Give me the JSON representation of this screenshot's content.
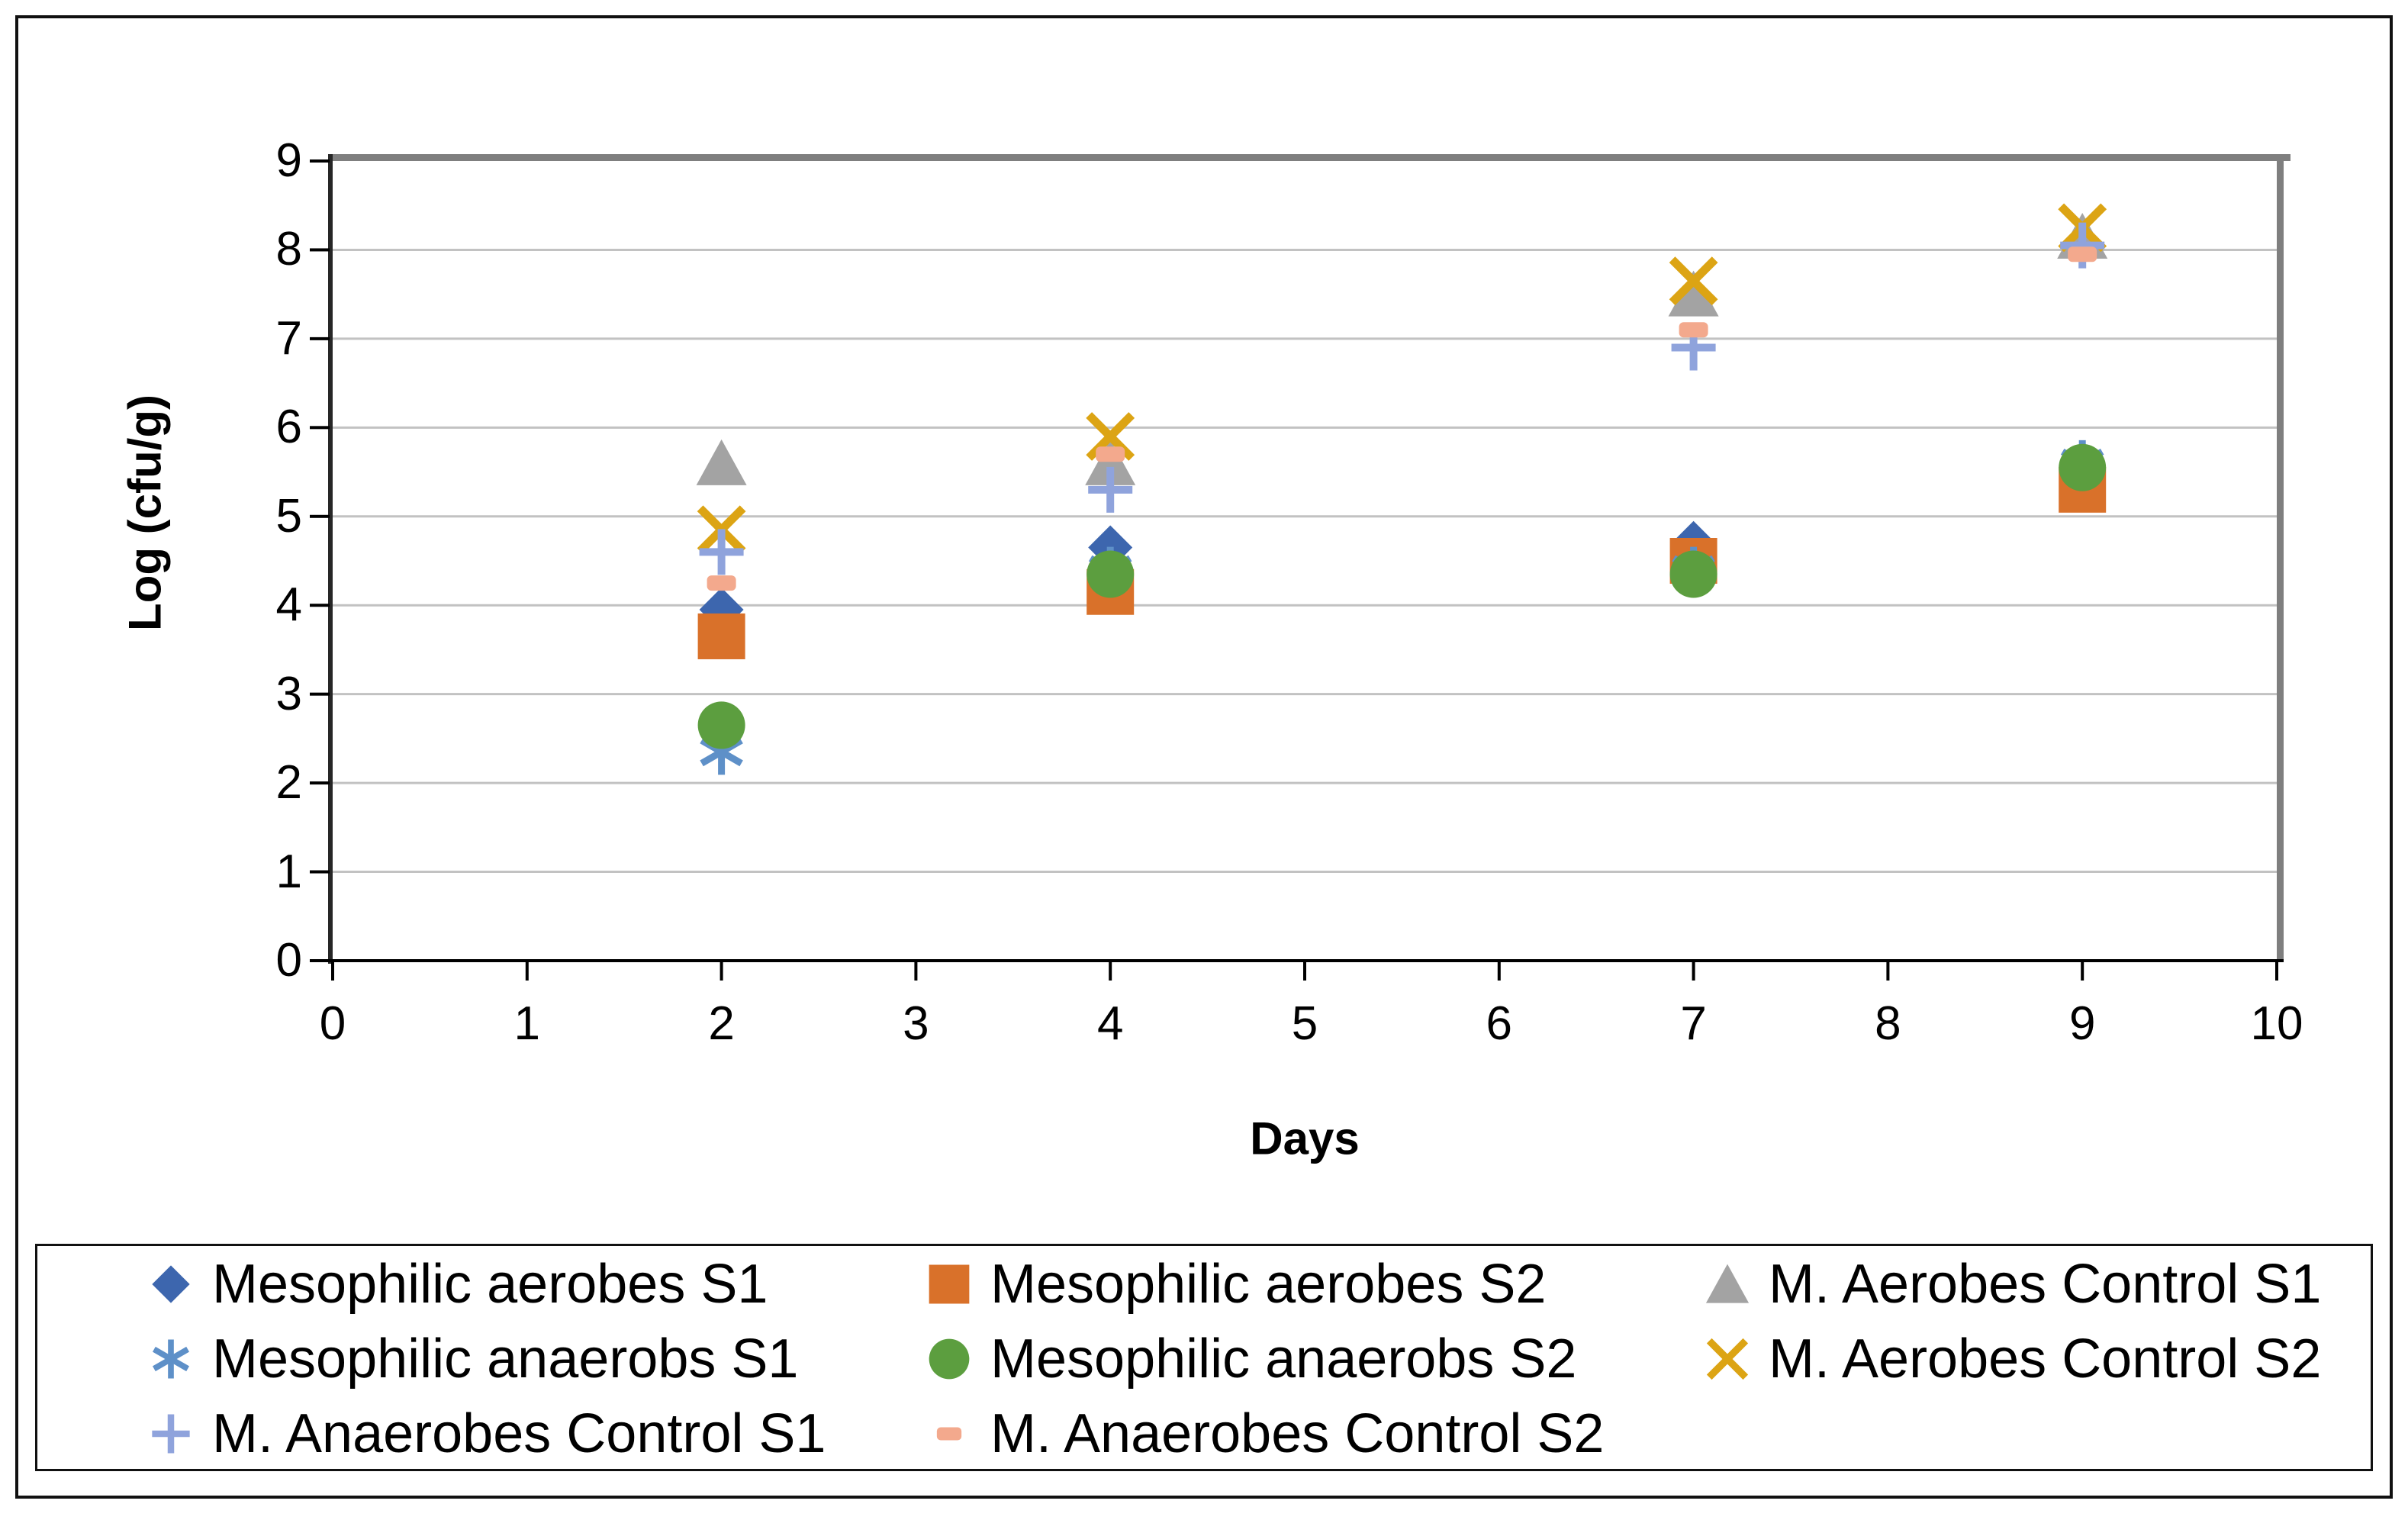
{
  "chart_data": {
    "type": "scatter",
    "title": "",
    "xlabel": "Days",
    "ylabel": "Log (cfu/g)",
    "xlim": [
      0,
      10
    ],
    "ylim": [
      0,
      9
    ],
    "x_ticks": [
      0,
      1,
      2,
      3,
      4,
      5,
      6,
      7,
      8,
      9,
      10
    ],
    "y_ticks": [
      0,
      1,
      2,
      3,
      4,
      5,
      6,
      7,
      8,
      9
    ],
    "grid": "horizontal-only",
    "legend_position": "bottom-box",
    "x": [
      2,
      4,
      7,
      9
    ],
    "series": [
      {
        "name": "Mesophilic aerobes S1",
        "marker": "diamond",
        "color": "#3D66AE",
        "values": [
          3.95,
          4.65,
          4.7,
          5.5
        ]
      },
      {
        "name": "Mesophilic aerobes S2",
        "marker": "square",
        "color": "#D9712A",
        "values": [
          3.65,
          4.15,
          4.5,
          5.3
        ]
      },
      {
        "name": "M. Aerobes Control S1",
        "marker": "triangle",
        "color": "#A3A3A3",
        "values": [
          5.6,
          5.6,
          7.5,
          8.15
        ]
      },
      {
        "name": "Mesophilic anaerobs S1",
        "marker": "asterisk",
        "color": "#5E90C8",
        "values": [
          2.35,
          4.4,
          4.4,
          5.6
        ]
      },
      {
        "name": "Mesophilic anaerobs S2",
        "marker": "circle",
        "color": "#5C9E3F",
        "values": [
          2.65,
          4.35,
          4.35,
          5.55
        ]
      },
      {
        "name": "M. Aerobes Control S2",
        "marker": "x",
        "color": "#DCA414",
        "values": [
          4.85,
          5.9,
          7.65,
          8.25
        ]
      },
      {
        "name": "M. Anaerobes Control S1",
        "marker": "plus",
        "color": "#8FA3DC",
        "values": [
          4.6,
          5.3,
          6.9,
          8.05
        ]
      },
      {
        "name": "M. Anaerobes Control S2",
        "marker": "dash",
        "color": "#F3A98D",
        "values": [
          4.25,
          5.7,
          7.1,
          7.95
        ]
      }
    ],
    "colors": {
      "gridline": "#C2C2C2",
      "plot_border": "#7F7F7F",
      "axis": "#262626",
      "tick": "#000000"
    }
  }
}
